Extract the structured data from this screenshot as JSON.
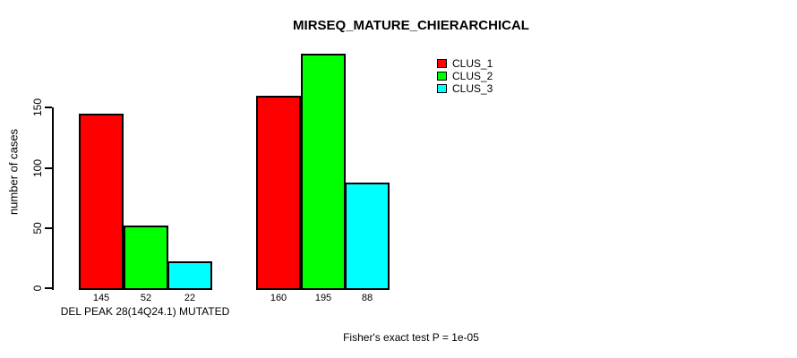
{
  "chart_data": {
    "type": "bar",
    "title": "MIRSEQ_MATURE_CHIERARCHICAL",
    "ylabel": "number of cases",
    "xlabel": "",
    "ylim": [
      0,
      200
    ],
    "yticks": [
      0,
      50,
      100,
      150
    ],
    "grid": false,
    "background_color": "#ffffff",
    "axis_color": "#000000",
    "series": [
      {
        "name": "CLUS_1",
        "color": "#ff0000"
      },
      {
        "name": "CLUS_2",
        "color": "#00ff00"
      },
      {
        "name": "CLUS_3",
        "color": "#00ffff"
      }
    ],
    "groups": [
      {
        "label": "DEL PEAK 28(14Q24.1) MUTATED",
        "values": [
          145,
          52,
          22
        ],
        "bar_labels": [
          "145",
          "52",
          "22"
        ]
      },
      {
        "label": "",
        "values": [
          160,
          195,
          88
        ],
        "bar_labels": [
          "160",
          "195",
          "88"
        ]
      }
    ],
    "legend": {
      "position": "top-right",
      "entries": [
        "CLUS_1",
        "CLUS_2",
        "CLUS_3"
      ]
    },
    "footnote": "Fisher's exact test P = 1e-05"
  }
}
